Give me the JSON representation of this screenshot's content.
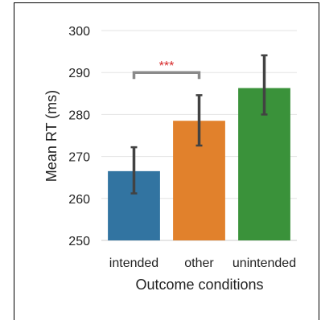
{
  "chart_data": {
    "type": "bar",
    "categories": [
      "intended",
      "other",
      "unintended"
    ],
    "values": [
      266.5,
      278.5,
      286.3
    ],
    "errors": [
      [
        261.2,
        272.2
      ],
      [
        272.6,
        284.6
      ],
      [
        280.0,
        294.1
      ]
    ],
    "colors": [
      "#3274a1",
      "#e1812c",
      "#3a923a"
    ],
    "xlabel": "Outcome conditions",
    "ylabel": "Mean RT (ms)",
    "ylim": [
      250,
      300
    ],
    "yticks": [
      250,
      260,
      270,
      280,
      290,
      300
    ],
    "grid": "horizontal",
    "annotations": [
      {
        "text": "***",
        "from": "intended",
        "to": "other",
        "y": 290,
        "color": "#d62728"
      }
    ]
  }
}
